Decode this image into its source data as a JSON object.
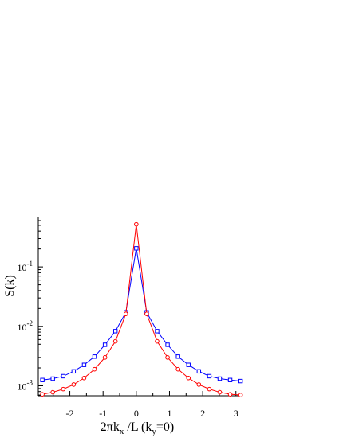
{
  "chart_data": {
    "type": "line",
    "title": "",
    "xlabel": {
      "main": "2πk",
      "sub1": "x",
      "mid": " /L (k",
      "sub2": "y",
      "end": "=0)"
    },
    "ylabel": "S(k)",
    "xlim": [
      -2.95,
      3.15
    ],
    "ylim": [
      0.00068,
      0.7
    ],
    "yscale": "log",
    "grid": false,
    "x_ticks": [
      -2,
      -1,
      0,
      1,
      2,
      3
    ],
    "x_tick_labels": [
      "-2",
      "-1",
      "0",
      "1",
      "2",
      "3"
    ],
    "y_ticks": [
      0.001,
      0.01,
      0.1
    ],
    "y_tick_labels": [
      {
        "base": "10",
        "exp": "-3"
      },
      {
        "base": "10",
        "exp": "-2"
      },
      {
        "base": "10",
        "exp": "-1"
      }
    ],
    "x": [
      -2.827,
      -2.513,
      -2.199,
      -1.885,
      -1.571,
      -1.257,
      -0.942,
      -0.628,
      -0.314,
      0.0,
      0.314,
      0.628,
      0.942,
      1.257,
      1.571,
      1.885,
      2.199,
      2.513,
      2.827,
      3.142
    ],
    "series": [
      {
        "color": "#0000ff",
        "marker": "square",
        "values": [
          0.00125,
          0.00132,
          0.00145,
          0.00175,
          0.00225,
          0.0031,
          0.0049,
          0.0083,
          0.0172,
          0.205,
          0.0172,
          0.0083,
          0.0049,
          0.0031,
          0.00225,
          0.00175,
          0.00145,
          0.00132,
          0.00125,
          0.0012
        ]
      },
      {
        "color": "#ff0000",
        "marker": "circle",
        "values": [
          0.00072,
          0.00078,
          0.00088,
          0.00105,
          0.00135,
          0.0019,
          0.003,
          0.0056,
          0.0162,
          0.52,
          0.0162,
          0.0056,
          0.003,
          0.0019,
          0.00135,
          0.00105,
          0.00088,
          0.00078,
          0.00072,
          0.0007
        ]
      }
    ]
  }
}
